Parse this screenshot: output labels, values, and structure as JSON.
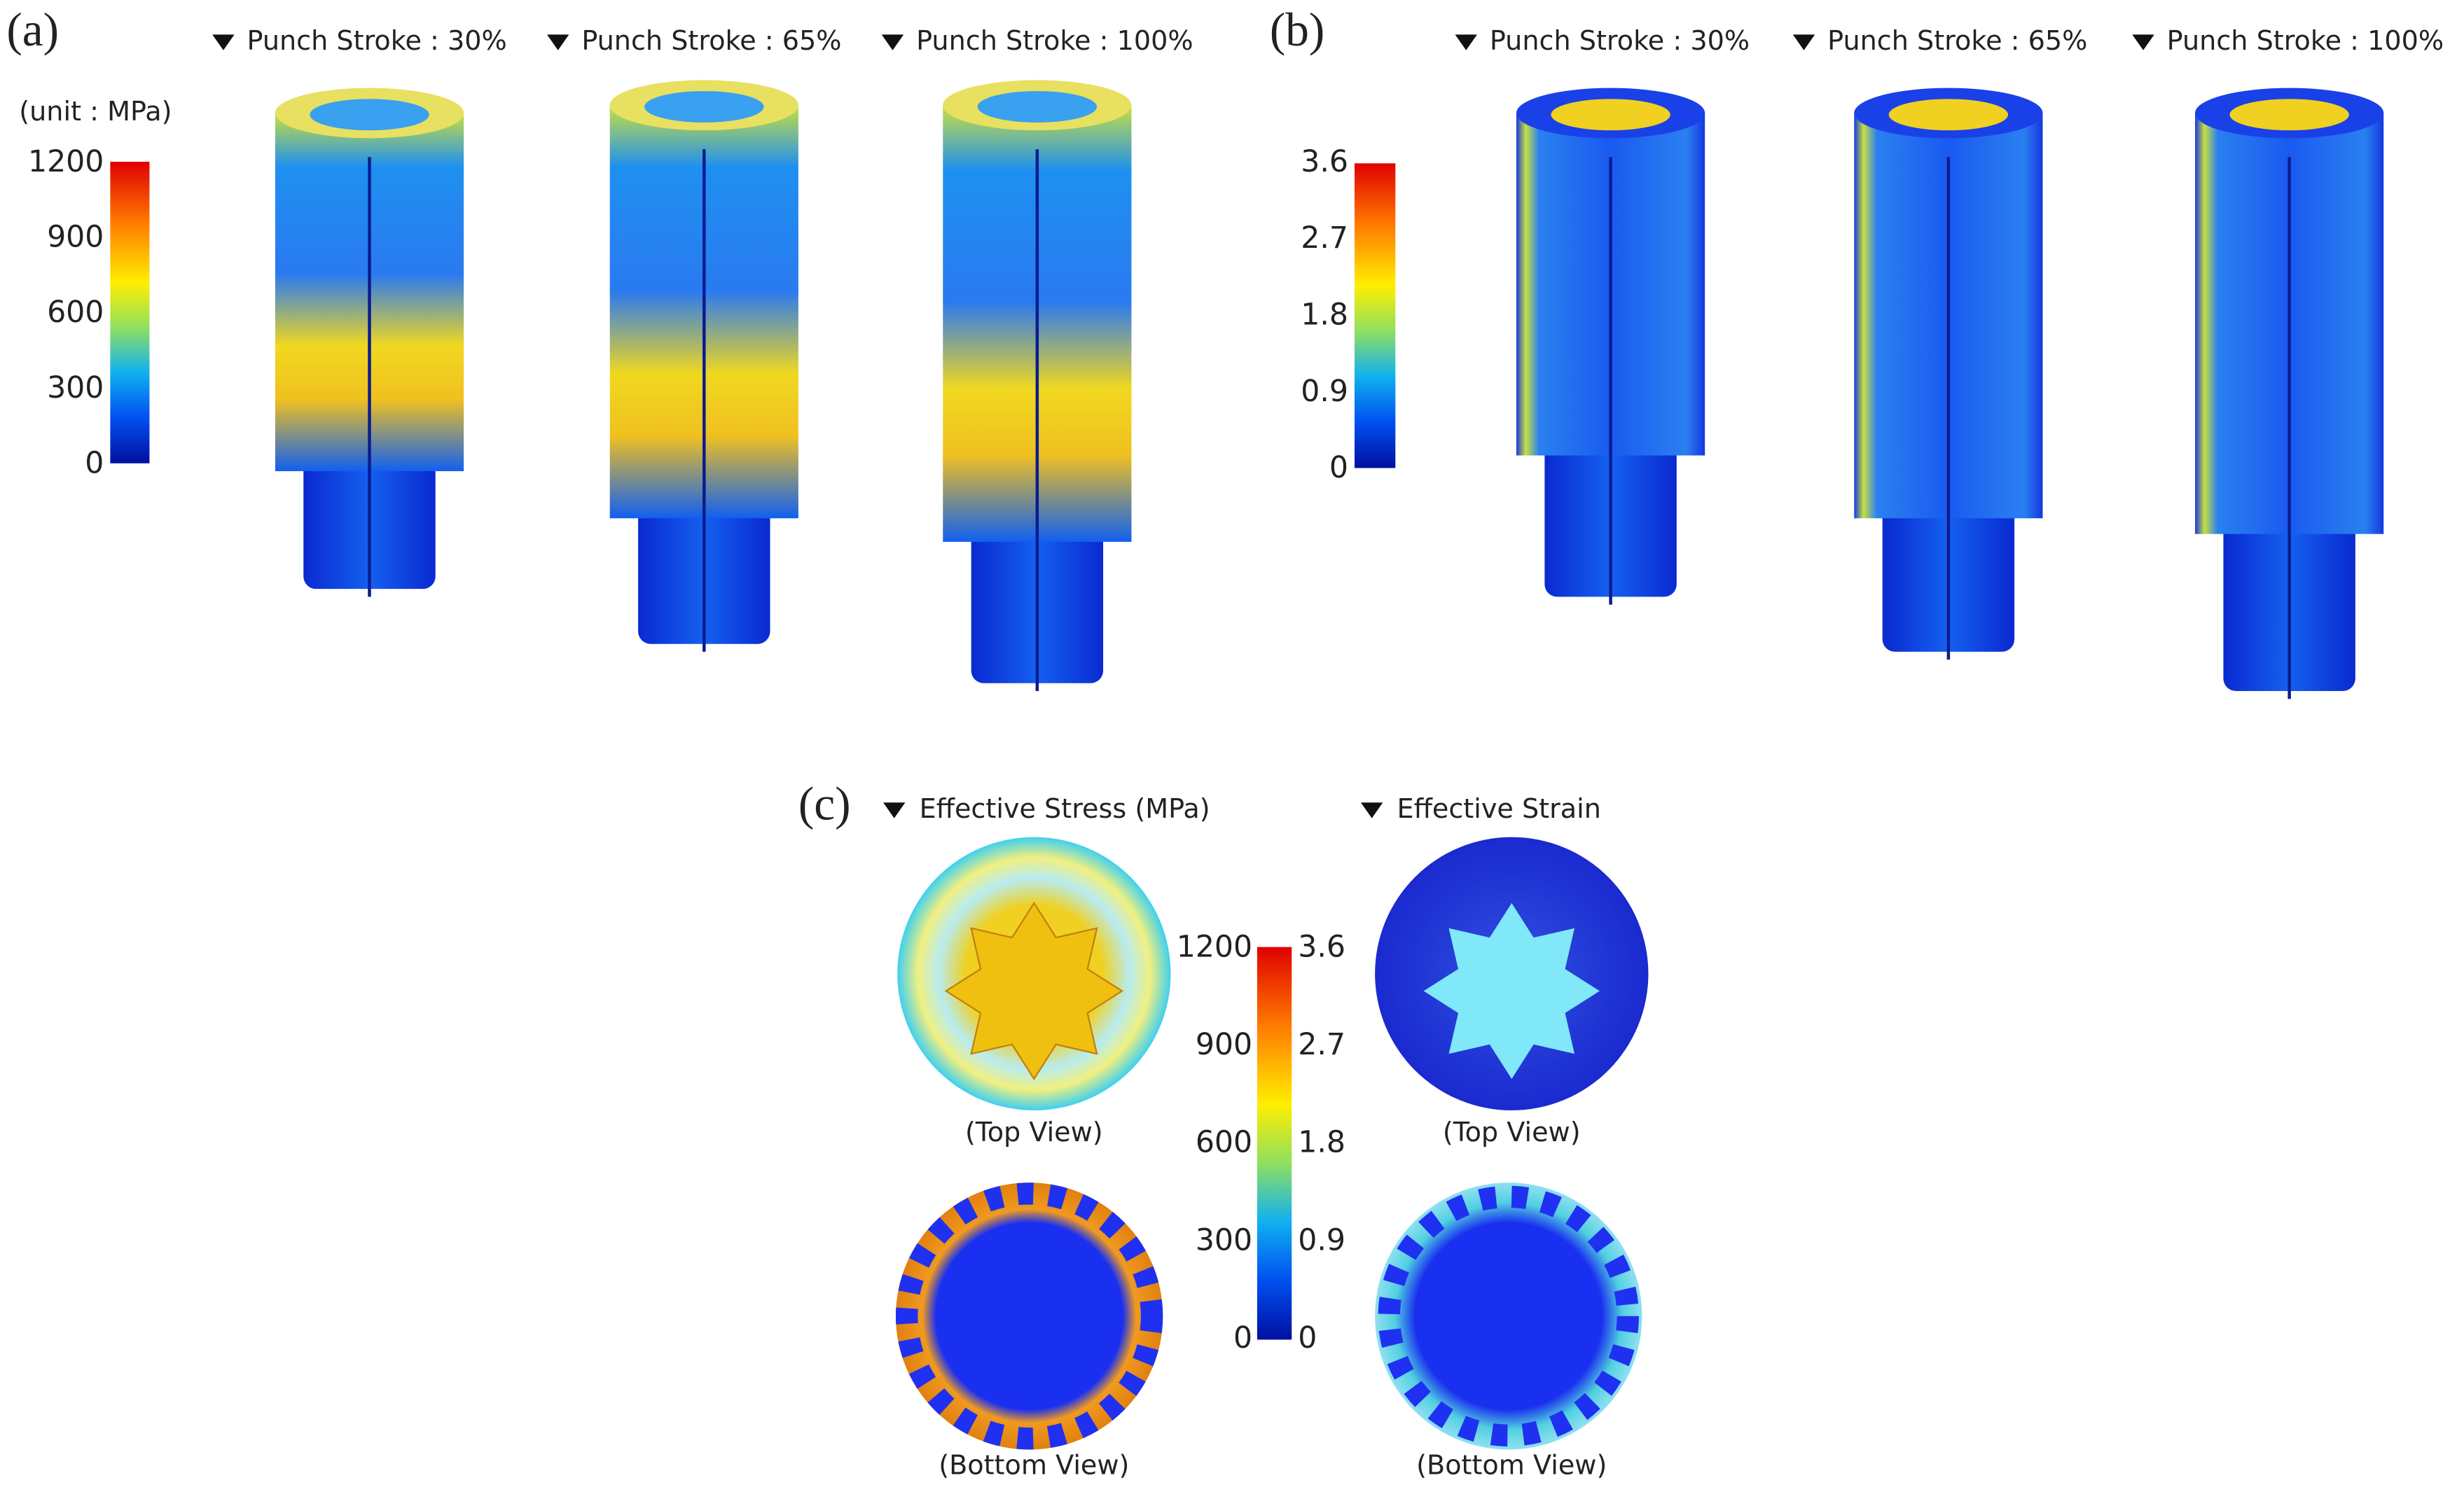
{
  "panels": [
    {
      "label": "(a)",
      "unit": "(unit : MPa)",
      "scale_ticks": [
        "1200",
        "900",
        "600",
        "300",
        "0"
      ],
      "views": [
        "Punch Stroke : 30%",
        "Punch Stroke : 65%",
        "Punch Stroke : 100%"
      ]
    },
    {
      "label": "(b)",
      "scale_ticks": [
        "3.6",
        "2.7",
        "1.8",
        "0.9",
        "0"
      ],
      "views": [
        "Punch Stroke : 30%",
        "Punch Stroke : 65%",
        "Punch Stroke : 100%"
      ]
    },
    {
      "label": "(c)",
      "columns": [
        "Effective Stress (MPa)",
        "Effective Strain"
      ],
      "stress_ticks": [
        "1200",
        "900",
        "600",
        "300",
        "0"
      ],
      "strain_ticks": [
        "3.6",
        "2.7",
        "1.8",
        "0.9",
        "0"
      ],
      "view_labels": [
        "(Top View)",
        "(Bottom View)"
      ]
    }
  ]
}
